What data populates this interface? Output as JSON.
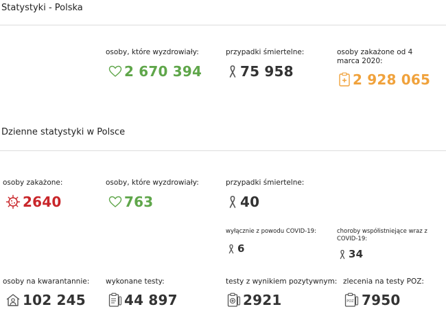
{
  "colors": {
    "green": "#5fa64a",
    "red": "#c9262a",
    "orange": "#f0a23c",
    "dark": "#333333",
    "divider": "#dcdcdc"
  },
  "poland": {
    "title": "Statystyki - Polska",
    "recovered": {
      "label": "osoby, które wyzdrowiały:",
      "value": "2 670 394",
      "icon": "heart-icon"
    },
    "deaths": {
      "label": "przypadki śmiertelne:",
      "value": "75 958",
      "icon": "ribbon-icon"
    },
    "infected": {
      "label": "osoby zakażone od 4 marca 2020:",
      "value": "2 928 065",
      "icon": "clipboard-plus-icon"
    }
  },
  "daily": {
    "title": "Dzienne statystyki w Polsce",
    "infected": {
      "label": "osoby zakażone:",
      "value": "2640",
      "icon": "virus-icon"
    },
    "recovered": {
      "label": "osoby, które wyzdrowiały:",
      "value": "763",
      "icon": "heart-icon"
    },
    "deaths": {
      "label": "przypadki śmiertelne:",
      "value": "40",
      "icon": "ribbon-icon"
    },
    "deaths_covid_only": {
      "label": "wyłącznie z powodu COVID-19:",
      "value": "6",
      "icon": "ribbon-icon"
    },
    "deaths_comorbid": {
      "label": "choroby współistniejące wraz z COVID-19:",
      "value": "34",
      "icon": "ribbon-icon"
    },
    "quarantine": {
      "label": "osoby na kwarantannie:",
      "value": "102 245",
      "icon": "house-person-icon"
    },
    "tests": {
      "label": "wykonane testy:",
      "value": "44 897",
      "icon": "clipboard-test-icon"
    },
    "positive_tests": {
      "label": "testy z wynikiem pozytywnym:",
      "value": "2921",
      "icon": "positive-test-icon"
    },
    "poz_orders": {
      "label": "zlecenia na testy POZ:",
      "value": "7950",
      "icon": "poz-order-icon",
      "icon_text": "POZ"
    }
  }
}
